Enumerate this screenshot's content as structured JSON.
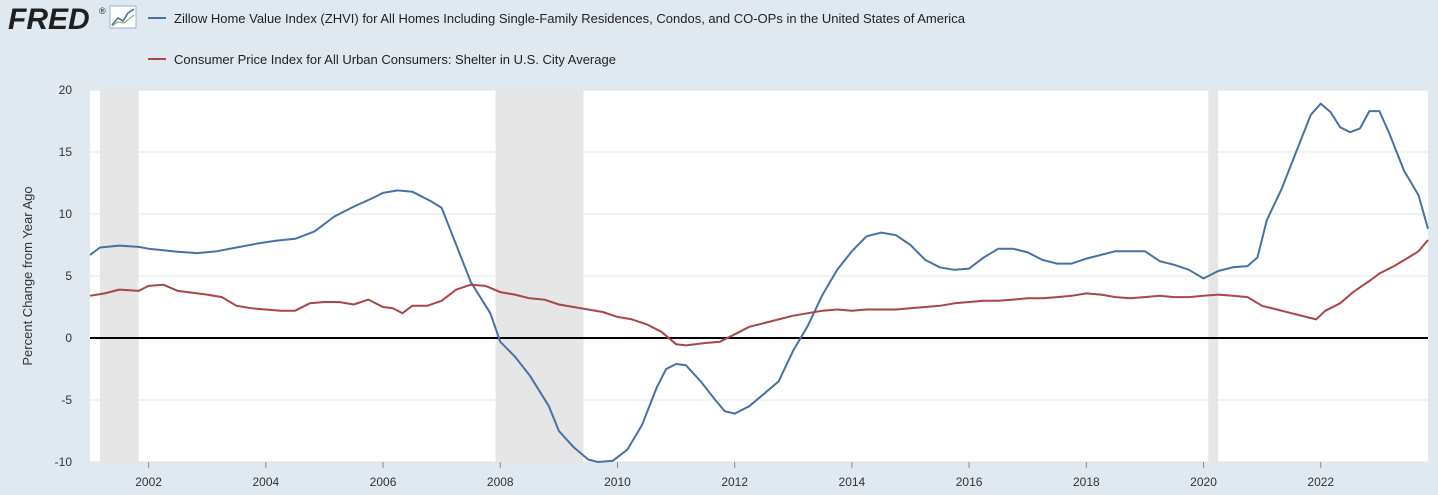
{
  "header": {
    "logo_text": "FRED",
    "logo_mark": "®"
  },
  "colors": {
    "background": "#e1e9f0",
    "plot_background": "#ffffff",
    "recession_shade": "#e6e6e6",
    "zero_line": "#000000",
    "series_zhvi": "#4572a7",
    "series_cpi": "#aa4643"
  },
  "chart_data": {
    "type": "line",
    "ylabel": "Percent Change from Year Ago",
    "xlabel": "",
    "ylim": [
      -10,
      20
    ],
    "y_ticks": [
      "20",
      "15",
      "10",
      "5",
      "0",
      "-5",
      "-10"
    ],
    "y_tick_values": [
      20,
      15,
      10,
      5,
      0,
      -5,
      -10
    ],
    "xlim": [
      2001.0,
      2023.0
    ],
    "x_ticks": [
      "2002",
      "2004",
      "2006",
      "2008",
      "2010",
      "2012",
      "2014",
      "2016",
      "2018",
      "2020",
      "2022"
    ],
    "x_tick_values": [
      2002,
      2004,
      2006,
      2008,
      2010,
      2012,
      2014,
      2016,
      2018,
      2020,
      2022
    ],
    "grid": true,
    "legend_position": "top",
    "recessions": [
      [
        2001.17,
        2001.83
      ],
      [
        2007.92,
        2009.42
      ],
      [
        2020.08,
        2020.25
      ]
    ],
    "series": [
      {
        "name": "Zillow Home Value Index (ZHVI) for All Homes Including Single-Family Residences, Condos, and CO-OPs in the United States of America",
        "color": "#4572a7",
        "points": [
          [
            2001.0,
            6.7
          ],
          [
            2001.17,
            7.3
          ],
          [
            2001.5,
            7.45
          ],
          [
            2001.83,
            7.35
          ],
          [
            2002.0,
            7.2
          ],
          [
            2002.5,
            6.95
          ],
          [
            2002.83,
            6.85
          ],
          [
            2003.17,
            7.0
          ],
          [
            2003.5,
            7.3
          ],
          [
            2003.83,
            7.6
          ],
          [
            2004.17,
            7.85
          ],
          [
            2004.5,
            8.0
          ],
          [
            2004.83,
            8.6
          ],
          [
            2005.17,
            9.8
          ],
          [
            2005.5,
            10.6
          ],
          [
            2005.83,
            11.3
          ],
          [
            2006.0,
            11.7
          ],
          [
            2006.25,
            11.9
          ],
          [
            2006.5,
            11.8
          ],
          [
            2006.83,
            11.0
          ],
          [
            2007.0,
            10.5
          ],
          [
            2007.25,
            7.5
          ],
          [
            2007.5,
            4.5
          ],
          [
            2007.83,
            2.0
          ],
          [
            2008.0,
            -0.3
          ],
          [
            2008.25,
            -1.5
          ],
          [
            2008.5,
            -3.0
          ],
          [
            2008.83,
            -5.5
          ],
          [
            2009.0,
            -7.5
          ],
          [
            2009.25,
            -8.8
          ],
          [
            2009.5,
            -9.8
          ],
          [
            2009.67,
            -10.0
          ],
          [
            2009.92,
            -9.9
          ],
          [
            2010.17,
            -9.0
          ],
          [
            2010.42,
            -7.0
          ],
          [
            2010.67,
            -4.0
          ],
          [
            2010.83,
            -2.5
          ],
          [
            2011.0,
            -2.1
          ],
          [
            2011.17,
            -2.2
          ],
          [
            2011.42,
            -3.5
          ],
          [
            2011.67,
            -5.0
          ],
          [
            2011.83,
            -5.9
          ],
          [
            2012.0,
            -6.1
          ],
          [
            2012.25,
            -5.5
          ],
          [
            2012.5,
            -4.5
          ],
          [
            2012.75,
            -3.5
          ],
          [
            2013.0,
            -1.0
          ],
          [
            2013.25,
            1.0
          ],
          [
            2013.5,
            3.5
          ],
          [
            2013.75,
            5.5
          ],
          [
            2014.0,
            7.0
          ],
          [
            2014.25,
            8.2
          ],
          [
            2014.5,
            8.5
          ],
          [
            2014.75,
            8.3
          ],
          [
            2015.0,
            7.5
          ],
          [
            2015.25,
            6.3
          ],
          [
            2015.5,
            5.7
          ],
          [
            2015.75,
            5.5
          ],
          [
            2016.0,
            5.6
          ],
          [
            2016.25,
            6.5
          ],
          [
            2016.5,
            7.2
          ],
          [
            2016.75,
            7.2
          ],
          [
            2017.0,
            6.9
          ],
          [
            2017.25,
            6.3
          ],
          [
            2017.5,
            6.0
          ],
          [
            2017.75,
            6.0
          ],
          [
            2018.0,
            6.4
          ],
          [
            2018.25,
            6.7
          ],
          [
            2018.5,
            7.0
          ],
          [
            2018.75,
            7.0
          ],
          [
            2019.0,
            7.0
          ],
          [
            2019.25,
            6.2
          ],
          [
            2019.5,
            5.9
          ],
          [
            2019.75,
            5.5
          ],
          [
            2020.0,
            4.8
          ],
          [
            2020.25,
            5.4
          ],
          [
            2020.5,
            5.7
          ],
          [
            2020.75,
            5.8
          ],
          [
            2020.92,
            6.5
          ],
          [
            2021.08,
            9.5
          ],
          [
            2021.33,
            12.0
          ],
          [
            2021.58,
            15.0
          ],
          [
            2021.83,
            18.0
          ],
          [
            2022.0,
            18.9
          ],
          [
            2022.17,
            18.2
          ],
          [
            2022.33,
            17.0
          ],
          [
            2022.5,
            16.6
          ],
          [
            2022.67,
            16.9
          ],
          [
            2022.83,
            18.3
          ],
          [
            2023.0,
            18.3
          ],
          [
            2023.17,
            16.5
          ],
          [
            2023.42,
            13.5
          ],
          [
            2023.67,
            11.5
          ],
          [
            2023.83,
            8.8
          ]
        ]
      },
      {
        "name": "Consumer Price Index for All Urban Consumers: Shelter in U.S. City Average",
        "color": "#aa4643",
        "points": [
          [
            2001.0,
            3.4
          ],
          [
            2001.25,
            3.6
          ],
          [
            2001.5,
            3.9
          ],
          [
            2001.83,
            3.8
          ],
          [
            2002.0,
            4.2
          ],
          [
            2002.25,
            4.3
          ],
          [
            2002.5,
            3.8
          ],
          [
            2002.83,
            3.6
          ],
          [
            2003.0,
            3.5
          ],
          [
            2003.25,
            3.3
          ],
          [
            2003.5,
            2.6
          ],
          [
            2003.75,
            2.4
          ],
          [
            2004.0,
            2.3
          ],
          [
            2004.25,
            2.2
          ],
          [
            2004.5,
            2.2
          ],
          [
            2004.75,
            2.8
          ],
          [
            2005.0,
            2.9
          ],
          [
            2005.25,
            2.9
          ],
          [
            2005.5,
            2.7
          ],
          [
            2005.75,
            3.1
          ],
          [
            2006.0,
            2.5
          ],
          [
            2006.17,
            2.4
          ],
          [
            2006.33,
            2.0
          ],
          [
            2006.5,
            2.6
          ],
          [
            2006.75,
            2.6
          ],
          [
            2007.0,
            3.0
          ],
          [
            2007.25,
            3.9
          ],
          [
            2007.5,
            4.3
          ],
          [
            2007.75,
            4.2
          ],
          [
            2008.0,
            3.7
          ],
          [
            2008.25,
            3.5
          ],
          [
            2008.5,
            3.2
          ],
          [
            2008.75,
            3.1
          ],
          [
            2009.0,
            2.7
          ],
          [
            2009.25,
            2.5
          ],
          [
            2009.5,
            2.3
          ],
          [
            2009.75,
            2.1
          ],
          [
            2010.0,
            1.7
          ],
          [
            2010.25,
            1.5
          ],
          [
            2010.5,
            1.1
          ],
          [
            2010.75,
            0.5
          ],
          [
            2011.0,
            -0.5
          ],
          [
            2011.17,
            -0.6
          ],
          [
            2011.5,
            -0.4
          ],
          [
            2011.75,
            -0.3
          ],
          [
            2012.0,
            0.3
          ],
          [
            2012.25,
            0.9
          ],
          [
            2012.5,
            1.2
          ],
          [
            2012.75,
            1.5
          ],
          [
            2013.0,
            1.8
          ],
          [
            2013.25,
            2.0
          ],
          [
            2013.5,
            2.2
          ],
          [
            2013.75,
            2.3
          ],
          [
            2014.0,
            2.2
          ],
          [
            2014.25,
            2.3
          ],
          [
            2014.5,
            2.3
          ],
          [
            2014.75,
            2.3
          ],
          [
            2015.0,
            2.4
          ],
          [
            2015.25,
            2.5
          ],
          [
            2015.5,
            2.6
          ],
          [
            2015.75,
            2.8
          ],
          [
            2016.0,
            2.9
          ],
          [
            2016.25,
            3.0
          ],
          [
            2016.5,
            3.0
          ],
          [
            2016.75,
            3.1
          ],
          [
            2017.0,
            3.2
          ],
          [
            2017.25,
            3.2
          ],
          [
            2017.5,
            3.3
          ],
          [
            2017.75,
            3.4
          ],
          [
            2018.0,
            3.6
          ],
          [
            2018.25,
            3.5
          ],
          [
            2018.5,
            3.3
          ],
          [
            2018.75,
            3.2
          ],
          [
            2019.0,
            3.3
          ],
          [
            2019.25,
            3.4
          ],
          [
            2019.5,
            3.3
          ],
          [
            2019.75,
            3.3
          ],
          [
            2020.0,
            3.4
          ],
          [
            2020.25,
            3.5
          ],
          [
            2020.5,
            3.4
          ],
          [
            2020.75,
            3.3
          ],
          [
            2021.0,
            2.6
          ],
          [
            2021.25,
            2.3
          ],
          [
            2021.5,
            2.0
          ],
          [
            2021.75,
            1.7
          ],
          [
            2021.92,
            1.5
          ],
          [
            2022.08,
            2.2
          ],
          [
            2022.33,
            2.8
          ],
          [
            2022.58,
            3.8
          ],
          [
            2022.83,
            4.6
          ],
          [
            2023.0,
            5.2
          ],
          [
            2023.25,
            5.8
          ],
          [
            2023.5,
            6.5
          ],
          [
            2023.67,
            7.0
          ],
          [
            2023.83,
            7.9
          ]
        ]
      }
    ]
  }
}
